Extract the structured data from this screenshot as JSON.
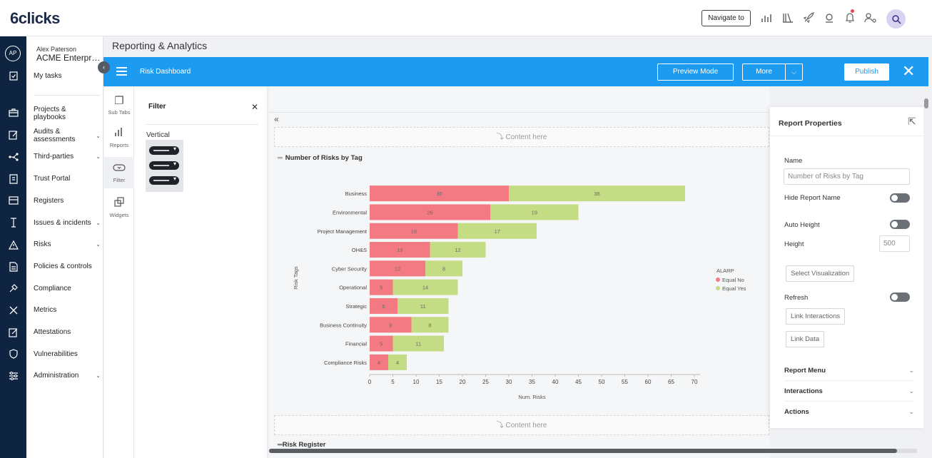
{
  "header": {
    "logo": "6clicks",
    "navigate_label": "Navigate to"
  },
  "rail": {
    "avatar_initials": "AP"
  },
  "user": {
    "name": "Alex Paterson",
    "org": "ACME Enterprise"
  },
  "sidebar": {
    "items": [
      {
        "label": "My tasks",
        "chevron": false
      },
      {
        "label": "Projects & playbooks",
        "chevron": false
      },
      {
        "label": "Audits & assessments",
        "chevron": true
      },
      {
        "label": "Third-parties",
        "chevron": true
      },
      {
        "label": "Trust Portal",
        "chevron": false
      },
      {
        "label": "Registers",
        "chevron": false
      },
      {
        "label": "Issues & incidents",
        "chevron": true
      },
      {
        "label": "Risks",
        "chevron": true
      },
      {
        "label": "Policies & controls",
        "chevron": false
      },
      {
        "label": "Compliance",
        "chevron": false
      },
      {
        "label": "Metrics",
        "chevron": false
      },
      {
        "label": "Attestations",
        "chevron": false
      },
      {
        "label": "Vulnerabilities",
        "chevron": false
      },
      {
        "label": "Administration",
        "chevron": true
      }
    ]
  },
  "page": {
    "title": "Reporting & Analytics"
  },
  "toolbar": {
    "dashboard_title": "Risk Dashboard",
    "preview_label": "Preview Mode",
    "more_label": "More",
    "publish_label": "Publish"
  },
  "builder_tabs": [
    {
      "label": "Sub Tabs",
      "icon": "copy-icon"
    },
    {
      "label": "Reports",
      "icon": "bar-chart-icon"
    },
    {
      "label": "Filter",
      "icon": "filter-icon"
    },
    {
      "label": "Widgets",
      "icon": "widget-icon"
    }
  ],
  "filter_panel": {
    "title": "Filter",
    "subtitle": "Vertical"
  },
  "canvas": {
    "placeholder": "Content here",
    "report_title": "Number of Risks by Tag",
    "next_report_title": "Risk Register"
  },
  "chart_data": {
    "type": "bar",
    "orientation": "horizontal",
    "stacked": true,
    "categories": [
      "Business",
      "Environmental",
      "Project Management",
      "OH&S",
      "Cyber Security",
      "Operational",
      "Strategic",
      "Business Continuity",
      "Financial",
      "Compliance Risks"
    ],
    "series": [
      {
        "name": "Equal No",
        "color": "#f37a82",
        "values": [
          30,
          26,
          19,
          13,
          12,
          5,
          6,
          9,
          5,
          4
        ]
      },
      {
        "name": "Equal Yes",
        "color": "#c4dc84",
        "values": [
          38,
          19,
          17,
          12,
          8,
          14,
          11,
          8,
          11,
          4
        ]
      }
    ],
    "legend_title": "ALARP",
    "legend_position": "right",
    "xlabel": "Num. Risks",
    "ylabel": "Risk Tags",
    "xlim": [
      0,
      70
    ],
    "xticks": [
      0,
      5,
      10,
      15,
      20,
      25,
      30,
      35,
      40,
      45,
      50,
      55,
      60,
      65,
      70
    ],
    "grid": false
  },
  "properties": {
    "title": "Report Properties",
    "name_label": "Name",
    "name_value": "Number of Risks by Tag",
    "hide_name_label": "Hide Report Name",
    "auto_height_label": "Auto Height",
    "height_label": "Height",
    "height_value": "500",
    "select_viz_label": "Select Visualization",
    "refresh_label": "Refresh",
    "link_interactions_label": "Link Interactions",
    "link_data_label": "Link Data",
    "sections": [
      "Report Menu",
      "Interactions",
      "Actions"
    ]
  },
  "colors": {
    "primary_blue": "#1d9bf0",
    "sidebar_dark": "#0e2440",
    "bar_no": "#f37a82",
    "bar_yes": "#c4dc84"
  }
}
